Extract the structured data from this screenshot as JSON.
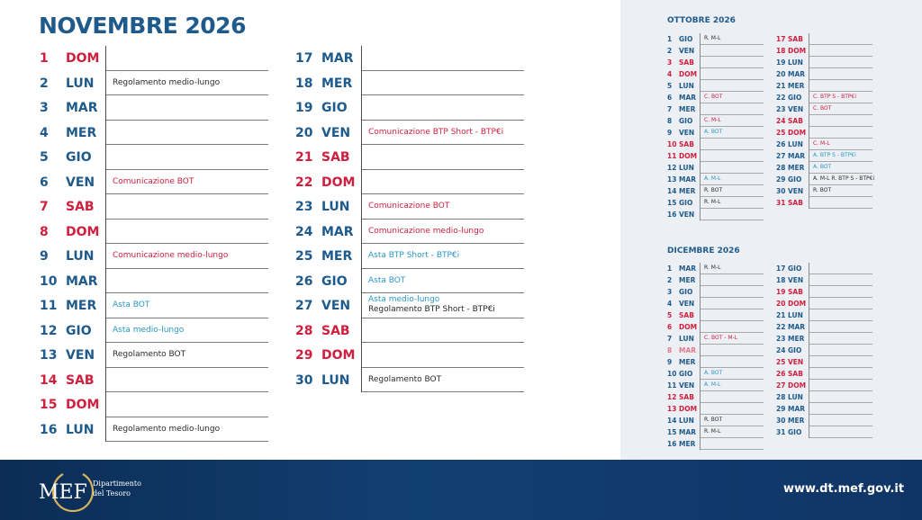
{
  "title": "NOVEMBRE 2026",
  "november": [
    {
      "n": "1",
      "d": "DOM",
      "c": "red",
      "ev": []
    },
    {
      "n": "2",
      "d": "LUN",
      "c": "blue",
      "ev": [
        {
          "t": "Regolamento medio-lungo",
          "c": "dark"
        }
      ]
    },
    {
      "n": "3",
      "d": "MAR",
      "c": "blue",
      "ev": []
    },
    {
      "n": "4",
      "d": "MER",
      "c": "blue",
      "ev": []
    },
    {
      "n": "5",
      "d": "GIO",
      "c": "blue",
      "ev": []
    },
    {
      "n": "6",
      "d": "VEN",
      "c": "blue",
      "ev": [
        {
          "t": "Comunicazione BOT",
          "c": "red"
        }
      ]
    },
    {
      "n": "7",
      "d": "SAB",
      "c": "red",
      "ev": []
    },
    {
      "n": "8",
      "d": "DOM",
      "c": "red",
      "ev": []
    },
    {
      "n": "9",
      "d": "LUN",
      "c": "blue",
      "ev": [
        {
          "t": "Comunicazione medio-lungo",
          "c": "red"
        }
      ]
    },
    {
      "n": "10",
      "d": "MAR",
      "c": "blue",
      "ev": []
    },
    {
      "n": "11",
      "d": "MER",
      "c": "blue",
      "ev": [
        {
          "t": "Asta BOT",
          "c": "cyan"
        }
      ]
    },
    {
      "n": "12",
      "d": "GIO",
      "c": "blue",
      "ev": [
        {
          "t": "Asta medio-lungo",
          "c": "cyan"
        }
      ]
    },
    {
      "n": "13",
      "d": "VEN",
      "c": "blue",
      "ev": [
        {
          "t": "Regolamento BOT",
          "c": "dark"
        }
      ]
    },
    {
      "n": "14",
      "d": "SAB",
      "c": "red",
      "ev": []
    },
    {
      "n": "15",
      "d": "DOM",
      "c": "red",
      "ev": []
    },
    {
      "n": "16",
      "d": "LUN",
      "c": "blue",
      "ev": [
        {
          "t": "Regolamento medio-lungo",
          "c": "dark"
        }
      ]
    },
    {
      "n": "17",
      "d": "MAR",
      "c": "blue",
      "ev": []
    },
    {
      "n": "18",
      "d": "MER",
      "c": "blue",
      "ev": []
    },
    {
      "n": "19",
      "d": "GIO",
      "c": "blue",
      "ev": []
    },
    {
      "n": "20",
      "d": "VEN",
      "c": "blue",
      "ev": [
        {
          "t": "Comunicazione BTP Short - BTP€i",
          "c": "red"
        }
      ]
    },
    {
      "n": "21",
      "d": "SAB",
      "c": "red",
      "ev": []
    },
    {
      "n": "22",
      "d": "DOM",
      "c": "red",
      "ev": []
    },
    {
      "n": "23",
      "d": "LUN",
      "c": "blue",
      "ev": [
        {
          "t": "Comunicazione BOT",
          "c": "red"
        }
      ]
    },
    {
      "n": "24",
      "d": "MAR",
      "c": "blue",
      "ev": [
        {
          "t": "Comunicazione medio-lungo",
          "c": "red"
        }
      ]
    },
    {
      "n": "25",
      "d": "MER",
      "c": "blue",
      "ev": [
        {
          "t": "Asta BTP Short - BTP€i",
          "c": "cyan"
        }
      ]
    },
    {
      "n": "26",
      "d": "GIO",
      "c": "blue",
      "ev": [
        {
          "t": "Asta BOT",
          "c": "cyan"
        }
      ]
    },
    {
      "n": "27",
      "d": "VEN",
      "c": "blue",
      "ev": [
        {
          "t": "Asta medio-lungo",
          "c": "cyan"
        },
        {
          "t": "Regolamento BTP Short - BTP€i",
          "c": "dark"
        }
      ]
    },
    {
      "n": "28",
      "d": "SAB",
      "c": "red",
      "ev": []
    },
    {
      "n": "29",
      "d": "DOM",
      "c": "red",
      "ev": []
    },
    {
      "n": "30",
      "d": "LUN",
      "c": "blue",
      "ev": [
        {
          "t": "Regolamento BOT",
          "c": "dark"
        }
      ]
    }
  ],
  "october": {
    "title": "OTTOBRE 2026",
    "days": [
      {
        "n": "1",
        "d": "GIO",
        "c": "blue",
        "ev": "R. M-L",
        "ec": "dark"
      },
      {
        "n": "2",
        "d": "VEN",
        "c": "blue",
        "ev": "",
        "ec": "dark"
      },
      {
        "n": "3",
        "d": "SAB",
        "c": "red",
        "ev": "",
        "ec": "dark"
      },
      {
        "n": "4",
        "d": "DOM",
        "c": "red",
        "ev": "",
        "ec": "dark"
      },
      {
        "n": "5",
        "d": "LUN",
        "c": "blue",
        "ev": "",
        "ec": "dark"
      },
      {
        "n": "6",
        "d": "MAR",
        "c": "blue",
        "ev": "C. BOT",
        "ec": "red"
      },
      {
        "n": "7",
        "d": "MER",
        "c": "blue",
        "ev": "",
        "ec": "dark"
      },
      {
        "n": "8",
        "d": "GIO",
        "c": "blue",
        "ev": "C. M-L",
        "ec": "red"
      },
      {
        "n": "9",
        "d": "VEN",
        "c": "blue",
        "ev": "A. BOT",
        "ec": "cyan"
      },
      {
        "n": "10",
        "d": "SAB",
        "c": "red",
        "ev": "",
        "ec": "dark"
      },
      {
        "n": "11",
        "d": "DOM",
        "c": "red",
        "ev": "",
        "ec": "dark"
      },
      {
        "n": "12",
        "d": "LUN",
        "c": "blue",
        "ev": "",
        "ec": "dark"
      },
      {
        "n": "13",
        "d": "MAR",
        "c": "blue",
        "ev": "A. M-L",
        "ec": "cyan"
      },
      {
        "n": "14",
        "d": "MER",
        "c": "blue",
        "ev": "R. BOT",
        "ec": "dark"
      },
      {
        "n": "15",
        "d": "GIO",
        "c": "blue",
        "ev": "R. M-L",
        "ec": "dark"
      },
      {
        "n": "16",
        "d": "VEN",
        "c": "blue",
        "ev": "",
        "ec": "dark"
      },
      {
        "n": "17",
        "d": "SAB",
        "c": "red",
        "ev": "",
        "ec": "dark"
      },
      {
        "n": "18",
        "d": "DOM",
        "c": "red",
        "ev": "",
        "ec": "dark"
      },
      {
        "n": "19",
        "d": "LUN",
        "c": "blue",
        "ev": "",
        "ec": "dark"
      },
      {
        "n": "20",
        "d": "MAR",
        "c": "blue",
        "ev": "",
        "ec": "dark"
      },
      {
        "n": "21",
        "d": "MER",
        "c": "blue",
        "ev": "",
        "ec": "dark"
      },
      {
        "n": "22",
        "d": "GIO",
        "c": "blue",
        "ev": "C. BTP S - BTP€i",
        "ec": "red"
      },
      {
        "n": "23",
        "d": "VEN",
        "c": "blue",
        "ev": "C. BOT",
        "ec": "red"
      },
      {
        "n": "24",
        "d": "SAB",
        "c": "red",
        "ev": "",
        "ec": "dark"
      },
      {
        "n": "25",
        "d": "DOM",
        "c": "red",
        "ev": "",
        "ec": "dark"
      },
      {
        "n": "26",
        "d": "LUN",
        "c": "blue",
        "ev": "C. M-L",
        "ec": "red"
      },
      {
        "n": "27",
        "d": "MAR",
        "c": "blue",
        "ev": "A. BTP S - BTP€i",
        "ec": "cyan"
      },
      {
        "n": "28",
        "d": "MER",
        "c": "blue",
        "ev": "A. BOT",
        "ec": "cyan"
      },
      {
        "n": "29",
        "d": "GIO",
        "c": "blue",
        "ev": "A. M-L R. BTP S - BTP€i",
        "ec": "dark"
      },
      {
        "n": "30",
        "d": "VEN",
        "c": "blue",
        "ev": "R. BOT",
        "ec": "dark"
      },
      {
        "n": "31",
        "d": "SAB",
        "c": "red",
        "ev": "",
        "ec": "dark"
      }
    ]
  },
  "december": {
    "title": "DICEMBRE 2026",
    "days": [
      {
        "n": "1",
        "d": "MAR",
        "c": "blue",
        "ev": "R. M-L",
        "ec": "dark"
      },
      {
        "n": "2",
        "d": "MER",
        "c": "blue",
        "ev": "",
        "ec": "dark"
      },
      {
        "n": "3",
        "d": "GIO",
        "c": "blue",
        "ev": "",
        "ec": "dark"
      },
      {
        "n": "4",
        "d": "VEN",
        "c": "blue",
        "ev": "",
        "ec": "dark"
      },
      {
        "n": "5",
        "d": "SAB",
        "c": "red",
        "ev": "",
        "ec": "dark"
      },
      {
        "n": "6",
        "d": "DOM",
        "c": "red",
        "ev": "",
        "ec": "dark"
      },
      {
        "n": "7",
        "d": "LUN",
        "c": "blue",
        "ev": "C. BOT - M-L",
        "ec": "red"
      },
      {
        "n": "8",
        "d": "MAR",
        "c": "pink",
        "ev": "",
        "ec": "dark"
      },
      {
        "n": "9",
        "d": "MER",
        "c": "blue",
        "ev": "",
        "ec": "dark"
      },
      {
        "n": "10",
        "d": "GIO",
        "c": "blue",
        "ev": "A. BOT",
        "ec": "cyan"
      },
      {
        "n": "11",
        "d": "VEN",
        "c": "blue",
        "ev": "A. M-L",
        "ec": "cyan"
      },
      {
        "n": "12",
        "d": "SAB",
        "c": "red",
        "ev": "",
        "ec": "dark"
      },
      {
        "n": "13",
        "d": "DOM",
        "c": "red",
        "ev": "",
        "ec": "dark"
      },
      {
        "n": "14",
        "d": "LUN",
        "c": "blue",
        "ev": "R. BOT",
        "ec": "dark"
      },
      {
        "n": "15",
        "d": "MAR",
        "c": "blue",
        "ev": "R. M-L",
        "ec": "dark"
      },
      {
        "n": "16",
        "d": "MER",
        "c": "blue",
        "ev": "",
        "ec": "dark"
      },
      {
        "n": "17",
        "d": "GIO",
        "c": "blue",
        "ev": "",
        "ec": "dark"
      },
      {
        "n": "18",
        "d": "VEN",
        "c": "blue",
        "ev": "",
        "ec": "dark"
      },
      {
        "n": "19",
        "d": "SAB",
        "c": "red",
        "ev": "",
        "ec": "dark"
      },
      {
        "n": "20",
        "d": "DOM",
        "c": "red",
        "ev": "",
        "ec": "dark"
      },
      {
        "n": "21",
        "d": "LUN",
        "c": "blue",
        "ev": "",
        "ec": "dark"
      },
      {
        "n": "22",
        "d": "MAR",
        "c": "blue",
        "ev": "",
        "ec": "dark"
      },
      {
        "n": "23",
        "d": "MER",
        "c": "blue",
        "ev": "",
        "ec": "dark"
      },
      {
        "n": "24",
        "d": "GIO",
        "c": "blue",
        "ev": "",
        "ec": "dark"
      },
      {
        "n": "25",
        "d": "VEN",
        "c": "red",
        "ev": "",
        "ec": "dark"
      },
      {
        "n": "26",
        "d": "SAB",
        "c": "red",
        "ev": "",
        "ec": "dark"
      },
      {
        "n": "27",
        "d": "DOM",
        "c": "red",
        "ev": "",
        "ec": "dark"
      },
      {
        "n": "28",
        "d": "LUN",
        "c": "blue",
        "ev": "",
        "ec": "dark"
      },
      {
        "n": "29",
        "d": "MAR",
        "c": "blue",
        "ev": "",
        "ec": "dark"
      },
      {
        "n": "30",
        "d": "MER",
        "c": "blue",
        "ev": "",
        "ec": "dark"
      },
      {
        "n": "31",
        "d": "GIO",
        "c": "blue",
        "ev": "",
        "ec": "dark"
      }
    ]
  },
  "footer": {
    "logo_text": "MEF",
    "logo_line1": "Dipartimento",
    "logo_line2": "del Tesoro",
    "website": "www.dt.mef.gov.it"
  },
  "colors": {
    "blue": "#1e5b8c",
    "red": "#cf1f3e",
    "cyan": "#2a97c6",
    "panel": "#eceff3",
    "footer": "#0f3566"
  }
}
